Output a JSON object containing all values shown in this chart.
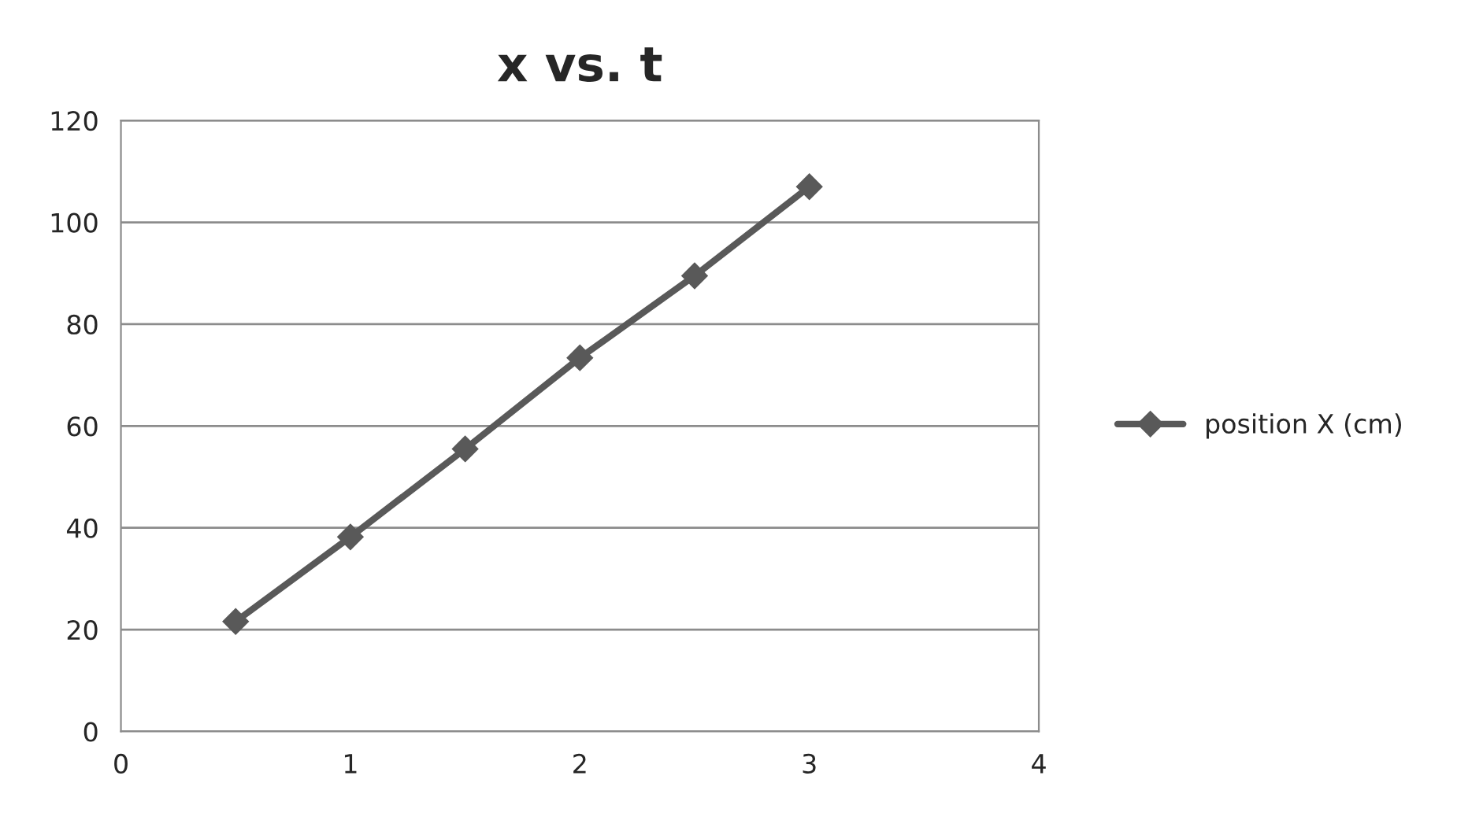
{
  "chart_data": {
    "type": "line",
    "title": "x vs. t",
    "x": [
      0.5,
      1,
      1.5,
      2,
      2.5,
      3
    ],
    "series": [
      {
        "name": "position X (cm)",
        "color": "#595959",
        "values": [
          21.6,
          38.2,
          55.5,
          73.4,
          89.5,
          107
        ]
      }
    ],
    "xlim": [
      0,
      4
    ],
    "xticks": [
      0,
      1,
      2,
      3,
      4
    ],
    "ylim": [
      0,
      120
    ],
    "yticks": [
      0,
      20,
      40,
      60,
      80,
      100,
      120
    ],
    "grid": "y",
    "legend": "right",
    "marker": "diamond",
    "line_style": "solid"
  }
}
